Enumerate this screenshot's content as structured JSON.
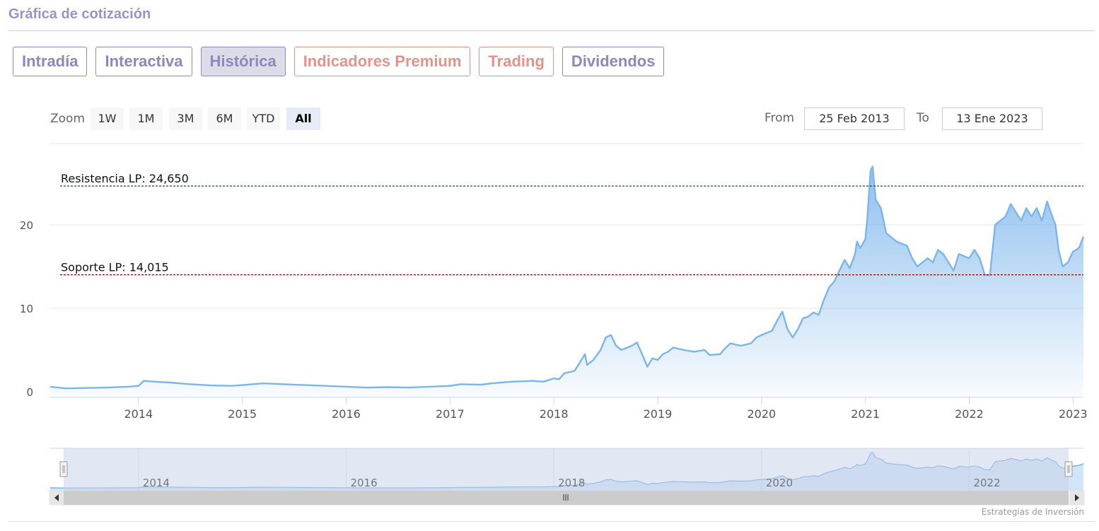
{
  "header": {
    "title": "Gráfica de cotización"
  },
  "tabs": [
    {
      "label": "Intradía",
      "style": "normal"
    },
    {
      "label": "Interactiva",
      "style": "normal"
    },
    {
      "label": "Histórica",
      "style": "active"
    },
    {
      "label": "Indicadores Premium",
      "style": "premium"
    },
    {
      "label": "Trading",
      "style": "premium"
    },
    {
      "label": "Dividendos",
      "style": "normal"
    }
  ],
  "toolbar": {
    "zoom_label": "Zoom",
    "zoom_buttons": [
      "1W",
      "1M",
      "3M",
      "6M",
      "YTD",
      "All"
    ],
    "zoom_selected": "All",
    "from_label": "From",
    "from_value": "25 Feb 2013",
    "to_label": "To",
    "to_value": "13 Ene 2023"
  },
  "credit": "Estrategias de Inversión",
  "colors": {
    "line": "#7cb5ec",
    "support": "#8b0000",
    "resistance": "#006400",
    "navigator_mask": "#c8d4ea"
  },
  "chart_data": {
    "type": "area",
    "y_range": [
      0,
      30
    ],
    "y_ticks": [
      0,
      10,
      20
    ],
    "x_range": [
      "2013-02-25",
      "2023-01-13"
    ],
    "x_ticks": [
      "2014",
      "2015",
      "2016",
      "2017",
      "2018",
      "2019",
      "2020",
      "2021",
      "2022",
      "2023"
    ],
    "navigator_ticks": [
      "2014",
      "2016",
      "2018",
      "2020",
      "2022"
    ],
    "levels": [
      {
        "label": "Resistencia LP: 24,650",
        "value": 24.65,
        "color": "resistance"
      },
      {
        "label": "Soporte LP: 14,015",
        "value": 14.015,
        "color": "support"
      }
    ],
    "series": [
      {
        "values": [
          [
            2013.15,
            0.6
          ],
          [
            2013.3,
            0.4
          ],
          [
            2013.5,
            0.45
          ],
          [
            2013.7,
            0.5
          ],
          [
            2013.9,
            0.6
          ],
          [
            2014.0,
            0.7
          ],
          [
            2014.05,
            1.3
          ],
          [
            2014.15,
            1.2
          ],
          [
            2014.3,
            1.1
          ],
          [
            2014.5,
            0.9
          ],
          [
            2014.7,
            0.75
          ],
          [
            2014.9,
            0.7
          ],
          [
            2015.0,
            0.8
          ],
          [
            2015.2,
            1.0
          ],
          [
            2015.4,
            0.9
          ],
          [
            2015.6,
            0.8
          ],
          [
            2015.8,
            0.7
          ],
          [
            2016.0,
            0.6
          ],
          [
            2016.2,
            0.5
          ],
          [
            2016.4,
            0.55
          ],
          [
            2016.6,
            0.5
          ],
          [
            2016.8,
            0.6
          ],
          [
            2017.0,
            0.7
          ],
          [
            2017.1,
            0.9
          ],
          [
            2017.3,
            0.85
          ],
          [
            2017.4,
            1.0
          ],
          [
            2017.5,
            1.1
          ],
          [
            2017.6,
            1.2
          ],
          [
            2017.8,
            1.3
          ],
          [
            2017.9,
            1.2
          ],
          [
            2018.0,
            1.6
          ],
          [
            2018.05,
            1.5
          ],
          [
            2018.1,
            2.2
          ],
          [
            2018.2,
            2.5
          ],
          [
            2018.25,
            3.5
          ],
          [
            2018.3,
            4.5
          ],
          [
            2018.32,
            3.2
          ],
          [
            2018.38,
            3.8
          ],
          [
            2018.45,
            5.0
          ],
          [
            2018.5,
            6.5
          ],
          [
            2018.55,
            6.8
          ],
          [
            2018.6,
            5.5
          ],
          [
            2018.65,
            5.0
          ],
          [
            2018.75,
            5.5
          ],
          [
            2018.8,
            5.9
          ],
          [
            2018.85,
            4.5
          ],
          [
            2018.9,
            3.0
          ],
          [
            2018.95,
            4.0
          ],
          [
            2019.0,
            3.8
          ],
          [
            2019.05,
            4.5
          ],
          [
            2019.1,
            4.8
          ],
          [
            2019.15,
            5.3
          ],
          [
            2019.25,
            5.0
          ],
          [
            2019.35,
            4.8
          ],
          [
            2019.45,
            5.0
          ],
          [
            2019.5,
            4.4
          ],
          [
            2019.6,
            4.5
          ],
          [
            2019.65,
            5.2
          ],
          [
            2019.7,
            5.8
          ],
          [
            2019.8,
            5.5
          ],
          [
            2019.9,
            5.8
          ],
          [
            2019.95,
            6.5
          ],
          [
            2020.0,
            6.8
          ],
          [
            2020.1,
            7.3
          ],
          [
            2020.15,
            8.5
          ],
          [
            2020.2,
            9.6
          ],
          [
            2020.25,
            7.5
          ],
          [
            2020.3,
            6.5
          ],
          [
            2020.35,
            7.5
          ],
          [
            2020.4,
            8.8
          ],
          [
            2020.45,
            9.0
          ],
          [
            2020.5,
            9.5
          ],
          [
            2020.55,
            9.2
          ],
          [
            2020.6,
            11.0
          ],
          [
            2020.65,
            12.5
          ],
          [
            2020.7,
            13.2
          ],
          [
            2020.75,
            14.5
          ],
          [
            2020.8,
            15.8
          ],
          [
            2020.85,
            14.8
          ],
          [
            2020.9,
            16.5
          ],
          [
            2020.92,
            18.0
          ],
          [
            2020.95,
            17.2
          ],
          [
            2021.0,
            18.3
          ],
          [
            2021.02,
            21.0
          ],
          [
            2021.05,
            26.5
          ],
          [
            2021.07,
            27.0
          ],
          [
            2021.1,
            23.0
          ],
          [
            2021.15,
            22.0
          ],
          [
            2021.2,
            19.0
          ],
          [
            2021.3,
            18.0
          ],
          [
            2021.4,
            17.5
          ],
          [
            2021.45,
            16.0
          ],
          [
            2021.5,
            15.0
          ],
          [
            2021.6,
            16.0
          ],
          [
            2021.65,
            15.5
          ],
          [
            2021.7,
            17.0
          ],
          [
            2021.75,
            16.5
          ],
          [
            2021.8,
            15.5
          ],
          [
            2021.85,
            14.5
          ],
          [
            2021.9,
            16.5
          ],
          [
            2022.0,
            16.0
          ],
          [
            2022.05,
            17.0
          ],
          [
            2022.1,
            16.0
          ],
          [
            2022.15,
            14.0
          ],
          [
            2022.2,
            14.0
          ],
          [
            2022.25,
            20.0
          ],
          [
            2022.3,
            20.5
          ],
          [
            2022.35,
            21.0
          ],
          [
            2022.4,
            22.5
          ],
          [
            2022.45,
            21.5
          ],
          [
            2022.5,
            20.5
          ],
          [
            2022.55,
            22.0
          ],
          [
            2022.6,
            21.0
          ],
          [
            2022.65,
            22.0
          ],
          [
            2022.7,
            20.5
          ],
          [
            2022.75,
            22.8
          ],
          [
            2022.8,
            21.0
          ],
          [
            2022.83,
            20.0
          ],
          [
            2022.86,
            17.0
          ],
          [
            2022.9,
            15.0
          ],
          [
            2022.95,
            15.5
          ],
          [
            2023.0,
            16.8
          ],
          [
            2023.03,
            17.0
          ],
          [
            2023.06,
            17.3
          ],
          [
            2023.1,
            18.6
          ]
        ]
      }
    ]
  }
}
